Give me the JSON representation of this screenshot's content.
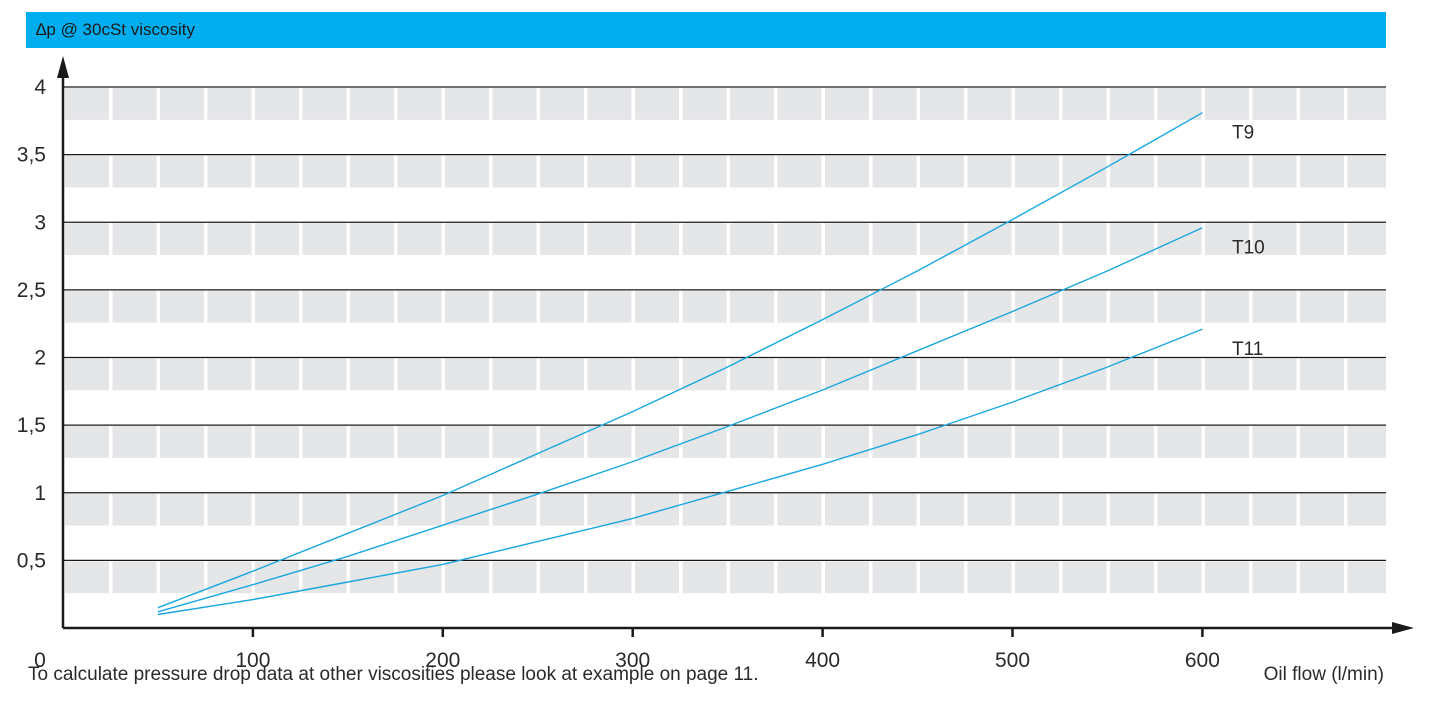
{
  "header": {
    "title": "∆p  @ 30cSt viscosity"
  },
  "footnote": "To calculate pressure drop data at other viscosities please look at example on page 11.",
  "colors": {
    "header_bg": "#00aeef",
    "line": "#1aa7e0",
    "band": "#e5e6e8",
    "axis": "#1a1a1a"
  },
  "chart_data": {
    "type": "line",
    "title": "∆p  @ 30cSt viscosity",
    "xlabel": "Oil flow (l/min)",
    "ylabel": "",
    "xlim": [
      0,
      700
    ],
    "ylim": [
      0,
      4
    ],
    "x_ticks": [
      0,
      100,
      200,
      300,
      400,
      500,
      600
    ],
    "x_tick_labels": [
      "0",
      "100",
      "200",
      "300",
      "400",
      "500",
      "600"
    ],
    "y_ticks": [
      0.5,
      1,
      1.5,
      2,
      2.5,
      3,
      3.5,
      4
    ],
    "y_tick_labels": [
      "0,5",
      "1",
      "1,5",
      "2",
      "2,5",
      "3",
      "3,5",
      "4"
    ],
    "grid": true,
    "legend": "inline labels at line ends",
    "series": [
      {
        "name": "T9",
        "x": [
          50,
          100,
          150,
          200,
          250,
          300,
          350,
          400,
          450,
          500,
          550,
          600
        ],
        "values": [
          0.15,
          0.42,
          0.7,
          0.98,
          1.29,
          1.6,
          1.93,
          2.28,
          2.64,
          3.02,
          3.41,
          3.81
        ]
      },
      {
        "name": "T10",
        "x": [
          50,
          100,
          150,
          200,
          250,
          300,
          350,
          400,
          450,
          500,
          550,
          600
        ],
        "values": [
          0.12,
          0.32,
          0.53,
          0.76,
          0.99,
          1.23,
          1.49,
          1.76,
          2.05,
          2.34,
          2.64,
          2.96
        ]
      },
      {
        "name": "T11",
        "x": [
          50,
          100,
          150,
          200,
          250,
          300,
          350,
          400,
          450,
          500,
          550,
          600
        ],
        "values": [
          0.1,
          0.21,
          0.34,
          0.47,
          0.64,
          0.81,
          1.01,
          1.21,
          1.43,
          1.67,
          1.93,
          2.21
        ]
      }
    ]
  }
}
